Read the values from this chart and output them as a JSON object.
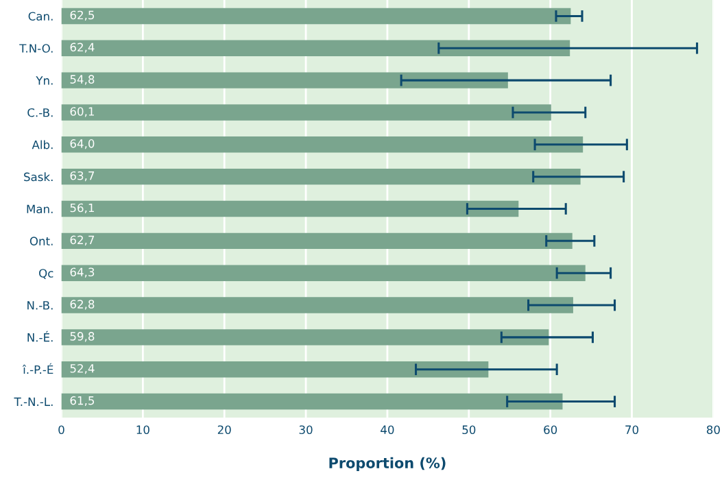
{
  "chart_data": {
    "type": "bar",
    "orientation": "horizontal",
    "xlabel": "Proportion (%)",
    "categories": [
      "Can.",
      "T.N-O.",
      "Yn.",
      "C.-B.",
      "Alb.",
      "Sask.",
      "Man.",
      "Ont.",
      "Qc",
      "N.-B.",
      "N.-É.",
      "î.-P.-É",
      "T.-N.-L."
    ],
    "values": [
      62.5,
      62.4,
      54.8,
      60.1,
      64.0,
      63.7,
      56.1,
      62.7,
      64.3,
      62.8,
      59.8,
      52.4,
      61.5
    ],
    "value_labels": [
      "62,5",
      "62,4",
      "54,8",
      "60,1",
      "64,0",
      "63,7",
      "56,1",
      "62,7",
      "64,3",
      "62,8",
      "59,8",
      "52,4",
      "61,5"
    ],
    "errors": [
      [
        60.7,
        63.9
      ],
      [
        46.3,
        78.0
      ],
      [
        41.7,
        67.4
      ],
      [
        55.4,
        64.3
      ],
      [
        58.1,
        69.4
      ],
      [
        57.9,
        69.0
      ],
      [
        49.8,
        61.9
      ],
      [
        59.5,
        65.4
      ],
      [
        60.8,
        67.4
      ],
      [
        57.3,
        67.9
      ],
      [
        54.0,
        65.2
      ],
      [
        43.5,
        60.8
      ],
      [
        54.7,
        67.9
      ]
    ],
    "color": "#7aa58e",
    "xlim": [
      0,
      80
    ],
    "xticks": [
      0,
      10,
      20,
      30,
      40,
      50,
      60,
      70,
      80
    ],
    "grid": "x"
  }
}
